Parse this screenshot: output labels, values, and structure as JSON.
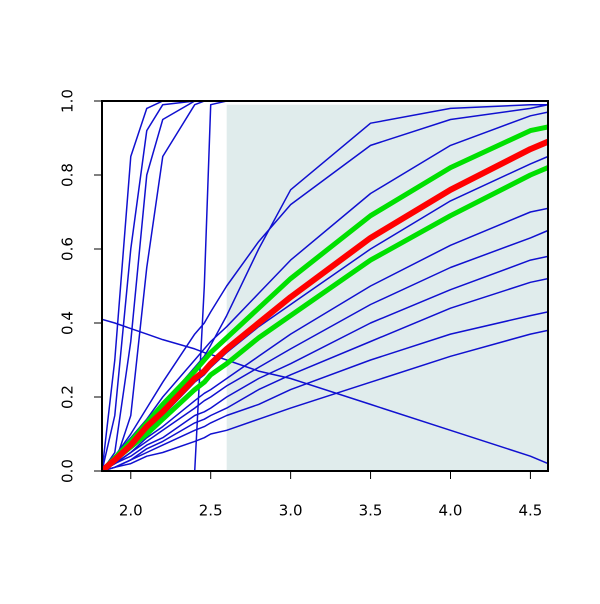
{
  "chart_data": {
    "type": "line",
    "x": [
      1.82,
      1.9,
      2.0,
      2.1,
      2.2,
      2.4,
      2.46,
      2.5,
      2.6,
      2.8,
      3.0,
      3.5,
      4.0,
      4.5,
      4.61
    ],
    "xlim": [
      1.82,
      4.61
    ],
    "ylim": [
      0,
      1.0
    ],
    "xticks": [
      {
        "value": 2,
        "label": "2.0"
      },
      {
        "value": 2.5,
        "label": "2.5"
      },
      {
        "value": 3,
        "label": "3.0"
      },
      {
        "value": 3.5,
        "label": "3.5"
      },
      {
        "value": 4,
        "label": "4.0"
      },
      {
        "value": 4.5,
        "label": "4.5"
      }
    ],
    "yticks": [
      {
        "value": 0,
        "label": "0.0"
      },
      {
        "value": 0.2,
        "label": "0.2"
      },
      {
        "value": 0.4,
        "label": "0.4"
      },
      {
        "value": 0.6,
        "label": "0.6"
      },
      {
        "value": 0.8,
        "label": "0.8"
      },
      {
        "value": 1,
        "label": "1.0"
      }
    ],
    "shaded_region": {
      "xlim": [
        2.6,
        4.61
      ],
      "ylim": [
        0,
        0.99
      ],
      "color": "#e0ecec"
    },
    "series": [
      {
        "color": "#1010d0",
        "line_width": 1.5,
        "values": [
          0,
          0.3,
          0.85,
          0.98,
          1,
          1,
          1,
          1,
          1,
          1,
          1,
          1,
          1,
          1,
          1
        ]
      },
      {
        "color": "#1010d0",
        "line_width": 1.5,
        "values": [
          0,
          0.15,
          0.6,
          0.92,
          0.99,
          1,
          1,
          1,
          1,
          1,
          1,
          1,
          1,
          1,
          1
        ]
      },
      {
        "color": "#1010d0",
        "line_width": 1.5,
        "values": [
          0,
          0.05,
          0.35,
          0.8,
          0.95,
          1,
          1,
          1,
          1,
          1,
          1,
          1,
          1,
          1,
          1
        ]
      },
      {
        "color": "#1010d0",
        "line_width": 1.5,
        "values": [
          0,
          0.02,
          0.15,
          0.55,
          0.85,
          0.99,
          1,
          1,
          1,
          1,
          1,
          1,
          1,
          1,
          1
        ]
      },
      {
        "color": "#1010d0",
        "line_width": 1.5,
        "values": [
          0,
          0,
          0,
          0,
          0,
          0,
          0.5,
          0.99,
          1,
          1,
          1,
          1,
          1,
          1,
          1
        ]
      },
      {
        "color": "#1010d0",
        "line_width": 1.5,
        "values": [
          0,
          0.03,
          0.08,
          0.13,
          0.18,
          0.28,
          0.31,
          0.34,
          0.42,
          0.6,
          0.76,
          0.94,
          0.98,
          0.99,
          0.99
        ]
      },
      {
        "color": "#1010d0",
        "line_width": 1.5,
        "values": [
          0.41,
          0.4,
          0.385,
          0.37,
          0.355,
          0.33,
          0.32,
          0.315,
          0.3,
          0.27,
          0.25,
          0.18,
          0.11,
          0.04,
          0.02
        ]
      },
      {
        "color": "#1010d0",
        "line_width": 1.5,
        "values": [
          0,
          0.04,
          0.1,
          0.17,
          0.24,
          0.37,
          0.4,
          0.43,
          0.5,
          0.62,
          0.72,
          0.88,
          0.95,
          0.98,
          0.99
        ]
      },
      {
        "color": "#1010d0",
        "line_width": 1.5,
        "values": [
          0,
          0.04,
          0.09,
          0.14,
          0.2,
          0.3,
          0.33,
          0.35,
          0.39,
          0.48,
          0.57,
          0.75,
          0.88,
          0.96,
          0.97
        ]
      },
      {
        "color": "#1010d0",
        "line_width": 1.5,
        "values": [
          0,
          0.03,
          0.07,
          0.11,
          0.15,
          0.24,
          0.26,
          0.28,
          0.32,
          0.39,
          0.45,
          0.6,
          0.73,
          0.83,
          0.85
        ]
      },
      {
        "color": "#1010d0",
        "line_width": 1.5,
        "values": [
          0,
          0.02,
          0.05,
          0.09,
          0.12,
          0.19,
          0.21,
          0.22,
          0.25,
          0.31,
          0.37,
          0.5,
          0.61,
          0.7,
          0.71
        ]
      },
      {
        "color": "#1010d0",
        "line_width": 1.5,
        "values": [
          0,
          0.02,
          0.05,
          0.08,
          0.11,
          0.17,
          0.19,
          0.2,
          0.23,
          0.28,
          0.33,
          0.45,
          0.55,
          0.63,
          0.65
        ]
      },
      {
        "color": "#1010d0",
        "line_width": 1.5,
        "values": [
          0,
          0.02,
          0.04,
          0.07,
          0.09,
          0.15,
          0.16,
          0.17,
          0.2,
          0.25,
          0.29,
          0.4,
          0.49,
          0.57,
          0.58
        ]
      },
      {
        "color": "#1010d0",
        "line_width": 1.5,
        "values": [
          0,
          0.01,
          0.03,
          0.06,
          0.08,
          0.13,
          0.14,
          0.15,
          0.17,
          0.22,
          0.26,
          0.35,
          0.44,
          0.51,
          0.52
        ]
      },
      {
        "color": "#1010d0",
        "line_width": 1.5,
        "values": [
          0,
          0.01,
          0.03,
          0.05,
          0.07,
          0.11,
          0.12,
          0.13,
          0.15,
          0.18,
          0.22,
          0.3,
          0.37,
          0.42,
          0.43
        ]
      },
      {
        "color": "#1010d0",
        "line_width": 1.5,
        "values": [
          0,
          0.01,
          0.02,
          0.04,
          0.05,
          0.08,
          0.09,
          0.1,
          0.11,
          0.14,
          0.17,
          0.24,
          0.31,
          0.37,
          0.38
        ]
      },
      {
        "color": "#00e000",
        "line_width": 5,
        "values": [
          0,
          0.035,
          0.08,
          0.13,
          0.18,
          0.27,
          0.3,
          0.32,
          0.36,
          0.44,
          0.52,
          0.69,
          0.82,
          0.92,
          0.93
        ]
      },
      {
        "color": "#00e000",
        "line_width": 5,
        "values": [
          0,
          0.03,
          0.065,
          0.1,
          0.14,
          0.22,
          0.24,
          0.26,
          0.29,
          0.36,
          0.42,
          0.57,
          0.69,
          0.8,
          0.82
        ]
      },
      {
        "color": "#ff0000",
        "line_width": 6,
        "values": [
          0,
          0.03,
          0.07,
          0.12,
          0.16,
          0.25,
          0.27,
          0.29,
          0.33,
          0.4,
          0.47,
          0.63,
          0.76,
          0.87,
          0.89
        ]
      }
    ]
  }
}
